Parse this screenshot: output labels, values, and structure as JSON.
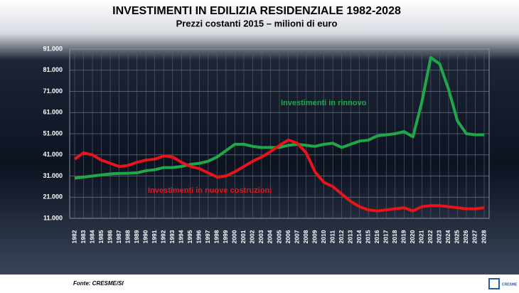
{
  "chart_data": {
    "type": "line",
    "title": "INVESTIMENTI IN EDILIZIA RESIDENZIALE 1982-2028",
    "subtitle": "Prezzi costanti 2015 – milioni di euro",
    "source": "Fonte: CRESME/SI",
    "logo": "CRESME",
    "categories": [
      "1982",
      "1983",
      "1984",
      "1985",
      "1986",
      "1987",
      "1988",
      "1989",
      "1990",
      "1991",
      "1992",
      "1993",
      "1994",
      "1995",
      "1996",
      "1997",
      "1998",
      "1999",
      "2000",
      "2001",
      "2002",
      "2003",
      "2004",
      "2005",
      "2006",
      "2007",
      "2008",
      "2009",
      "2010",
      "2011",
      "2012",
      "2013",
      "2014",
      "2015",
      "2016",
      "2017",
      "2018",
      "2019",
      "2020",
      "2021",
      "2022",
      "2023",
      "2024",
      "2025",
      "2026",
      "2027",
      "2028"
    ],
    "series": [
      {
        "name": "Investimenti in rinnovo",
        "color": "#1fa84a",
        "values": [
          30000,
          30500,
          31000,
          31500,
          32000,
          32200,
          32300,
          32500,
          33500,
          34000,
          35000,
          35000,
          35500,
          36500,
          37000,
          38000,
          40000,
          43000,
          46000,
          46000,
          45000,
          44500,
          44500,
          44500,
          45500,
          46000,
          45500,
          45000,
          46000,
          46500,
          44500,
          46000,
          47500,
          48000,
          50000,
          50500,
          51000,
          52000,
          49500,
          66000,
          87000,
          84000,
          72000,
          57000,
          51000,
          50500,
          50500
        ]
      },
      {
        "name": "Investimenti in nuove costruzioni",
        "color": "#e8141b",
        "values": [
          39000,
          42000,
          41000,
          38500,
          37000,
          35500,
          36000,
          37500,
          38500,
          39000,
          40500,
          40000,
          37500,
          35500,
          34500,
          32500,
          30500,
          31000,
          33000,
          35500,
          38000,
          40000,
          42500,
          45500,
          48000,
          46500,
          42000,
          33000,
          28000,
          26000,
          22500,
          19000,
          16500,
          15000,
          14500,
          15000,
          15500,
          16000,
          14500,
          16500,
          17000,
          17000,
          16500,
          16000,
          15500,
          15500,
          16000
        ]
      }
    ],
    "ylim": [
      11000,
      91000
    ],
    "yticks": [
      {
        "value": 11000,
        "label": "11.000"
      },
      {
        "value": 21000,
        "label": "21.000"
      },
      {
        "value": 31000,
        "label": "31.000"
      },
      {
        "value": 41000,
        "label": "41.000"
      },
      {
        "value": 51000,
        "label": "51.000"
      },
      {
        "value": 61000,
        "label": "61.000"
      },
      {
        "value": 71000,
        "label": "71.000"
      },
      {
        "value": 81000,
        "label": "81.000"
      },
      {
        "value": 91000,
        "label": "91.000"
      }
    ],
    "grid": true
  }
}
